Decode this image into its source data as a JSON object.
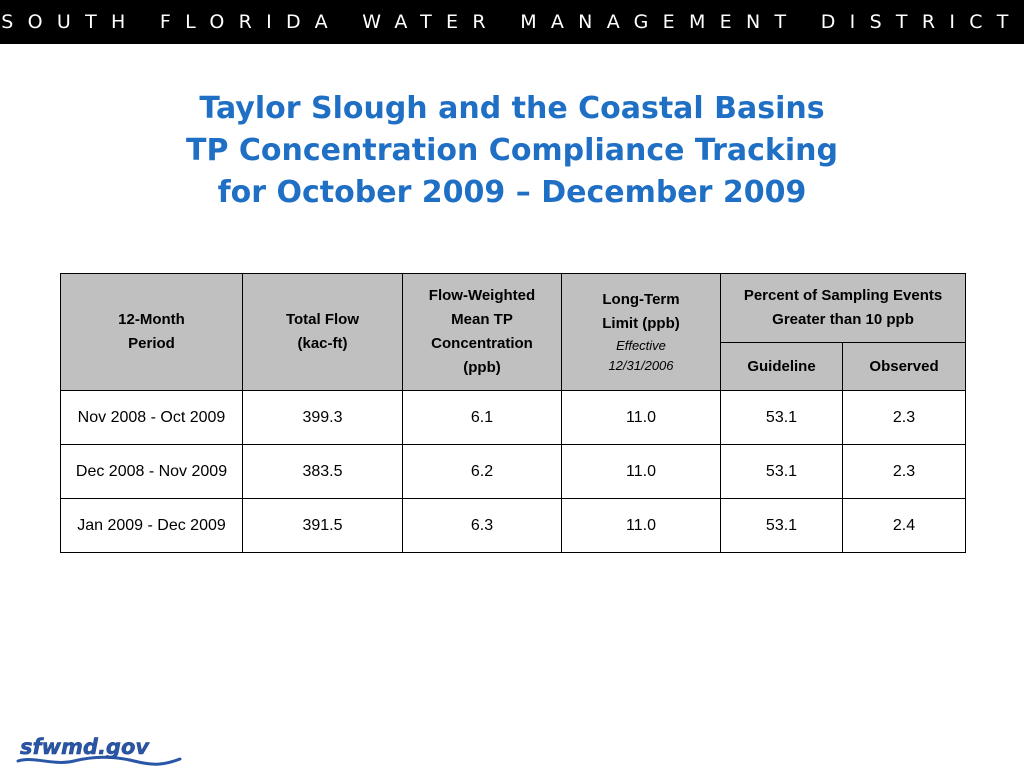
{
  "banner": {
    "text": "SOUTH FLORIDA WATER MANAGEMENT DISTRICT"
  },
  "title": {
    "line1": "Taylor Slough and the Coastal Basins",
    "line2": "TP Concentration Compliance Tracking",
    "line3": "for October 2009 – December 2009"
  },
  "table": {
    "headers": {
      "period": [
        "12-Month",
        "Period"
      ],
      "total_flow": [
        "Total Flow",
        "(kac-ft)"
      ],
      "fwm": [
        "Flow-Weighted",
        "Mean TP",
        "Concentration",
        "(ppb)"
      ],
      "ltl": [
        "Long-Term",
        "Limit (ppb)"
      ],
      "ltl_effective": [
        "Effective",
        "12/31/2006"
      ],
      "percent": [
        "Percent of Sampling Events",
        "Greater than 10 ppb"
      ],
      "guideline": "Guideline",
      "observed": "Observed"
    },
    "rows": [
      [
        "Nov 2008 - Oct 2009",
        "399.3",
        "6.1",
        "11.0",
        "53.1",
        "2.3"
      ],
      [
        "Dec 2008 - Nov 2009",
        "383.5",
        "6.2",
        "11.0",
        "53.1",
        "2.3"
      ],
      [
        "Jan 2009 - Dec 2009",
        "391.5",
        "6.3",
        "11.0",
        "53.1",
        "2.4"
      ]
    ]
  },
  "logo": {
    "text": "sfwmd.gov",
    "color": "#2a56a8"
  }
}
